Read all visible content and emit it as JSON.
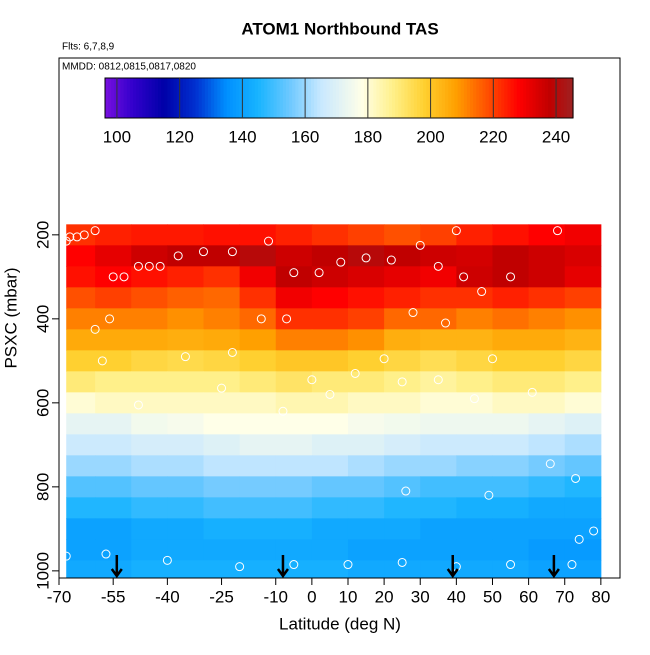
{
  "chart_data": {
    "type": "heatmap",
    "title": "ATOM1 Northbound TAS",
    "subtitle": "Flts: 6,7,8,9",
    "annotation": "MMDD: 0812,0815,0817,0820",
    "xlabel": "Latitude (deg N)",
    "ylabel": "PSXC (mbar)",
    "xlim": [
      -70,
      85.3
    ],
    "ylim": [
      1017,
      -221
    ],
    "xticks": [
      -70,
      -55,
      -40,
      -25,
      -10,
      0,
      10,
      20,
      30,
      40,
      50,
      60,
      70,
      80
    ],
    "yticks": [
      200,
      400,
      600,
      800,
      1000
    ],
    "x_edges": [
      -68,
      -60,
      -50,
      -40,
      -30,
      -20,
      -10,
      0,
      10,
      20,
      30,
      40,
      50,
      60,
      70,
      80
    ],
    "y_edges": [
      175,
      225,
      275,
      325,
      375,
      425,
      475,
      525,
      575,
      625,
      675,
      725,
      775,
      825,
      875,
      925,
      975,
      1025
    ],
    "z": [
      [
        222,
        224,
        225,
        225,
        226,
        226,
        224,
        222,
        220,
        218,
        220,
        224,
        226,
        228,
        230
      ],
      [
        228,
        232,
        236,
        238,
        238,
        240,
        236,
        238,
        240,
        238,
        236,
        235,
        238,
        236,
        234
      ],
      [
        226,
        228,
        226,
        224,
        222,
        230,
        238,
        236,
        234,
        232,
        230,
        236,
        238,
        236,
        232
      ],
      [
        218,
        220,
        218,
        216,
        215,
        222,
        230,
        228,
        226,
        224,
        222,
        222,
        224,
        222,
        220
      ],
      [
        212,
        212,
        212,
        210,
        212,
        215,
        222,
        222,
        220,
        215,
        215,
        212,
        214,
        212,
        210
      ],
      [
        206,
        206,
        206,
        205,
        206,
        208,
        212,
        212,
        210,
        205,
        204,
        204,
        206,
        206,
        204
      ],
      [
        198,
        198,
        196,
        195,
        196,
        198,
        200,
        200,
        198,
        196,
        194,
        196,
        198,
        198,
        196
      ],
      [
        190,
        188,
        188,
        188,
        188,
        190,
        192,
        190,
        190,
        188,
        186,
        188,
        190,
        190,
        188
      ],
      [
        180,
        182,
        182,
        182,
        182,
        182,
        184,
        184,
        182,
        182,
        180,
        180,
        182,
        182,
        180
      ],
      [
        172,
        172,
        175,
        176,
        178,
        178,
        178,
        178,
        176,
        175,
        174,
        174,
        174,
        172,
        170
      ],
      [
        166,
        166,
        168,
        168,
        170,
        172,
        172,
        170,
        170,
        168,
        166,
        166,
        166,
        164,
        162
      ],
      [
        160,
        160,
        162,
        162,
        164,
        164,
        164,
        164,
        162,
        160,
        160,
        158,
        158,
        156,
        154
      ],
      [
        152,
        152,
        154,
        154,
        156,
        156,
        156,
        154,
        154,
        152,
        150,
        150,
        150,
        148,
        146
      ],
      [
        146,
        146,
        148,
        148,
        150,
        150,
        150,
        148,
        148,
        146,
        146,
        144,
        144,
        142,
        142
      ],
      [
        140,
        140,
        142,
        142,
        144,
        144,
        144,
        142,
        142,
        142,
        140,
        140,
        140,
        140,
        140
      ],
      [
        140,
        140,
        142,
        142,
        142,
        142,
        142,
        142,
        140,
        140,
        140,
        140,
        140,
        138,
        138
      ],
      [
        142,
        142,
        144,
        144,
        144,
        144,
        144,
        144,
        142,
        142,
        142,
        142,
        142,
        140,
        140
      ]
    ],
    "points": {
      "lat": [
        -68,
        -67,
        -65,
        -63,
        -60,
        -55,
        -52,
        -48,
        -45,
        -42,
        -37,
        -30,
        -22,
        -12,
        -5,
        2,
        8,
        15,
        22,
        30,
        35,
        40,
        42,
        55,
        68,
        -56,
        -60,
        -14,
        -7,
        28,
        37,
        47,
        -58,
        -35,
        -22,
        0,
        12,
        20,
        35,
        50,
        -48,
        -25,
        -8,
        5,
        25,
        45,
        61,
        -68,
        -57,
        -40,
        -20,
        -5,
        10,
        25,
        40,
        55,
        72,
        26,
        49,
        66,
        73,
        74,
        78
      ],
      "pressure": [
        215,
        205,
        205,
        200,
        190,
        300,
        300,
        275,
        275,
        275,
        250,
        240,
        240,
        215,
        290,
        290,
        265,
        255,
        260,
        225,
        275,
        190,
        300,
        300,
        190,
        400,
        425,
        400,
        400,
        385,
        410,
        335,
        500,
        490,
        480,
        545,
        530,
        495,
        545,
        495,
        605,
        565,
        620,
        580,
        550,
        590,
        575,
        965,
        960,
        975,
        990,
        985,
        985,
        980,
        990,
        985,
        985,
        810,
        820,
        745,
        780,
        925,
        905
      ]
    },
    "arrows": [
      -54,
      -8,
      39,
      67
    ],
    "colorbar": {
      "lim": [
        96.2,
        245.4
      ],
      "ticks": [
        100,
        120,
        140,
        160,
        180,
        200,
        220,
        240
      ]
    },
    "colormap": {
      "values": [
        96,
        105,
        115,
        125,
        135,
        145,
        155,
        165,
        178,
        188,
        198,
        208,
        218,
        228,
        238,
        245
      ],
      "colors": [
        "#7a10e0",
        "#3300cc",
        "#0000a8",
        "#0030d0",
        "#0090ff",
        "#18b4ff",
        "#6cc8ff",
        "#c8e8ff",
        "#ffffe8",
        "#fff08a",
        "#ffd030",
        "#ffa000",
        "#ff5000",
        "#ff0000",
        "#c00000",
        "#a02020"
      ]
    }
  }
}
